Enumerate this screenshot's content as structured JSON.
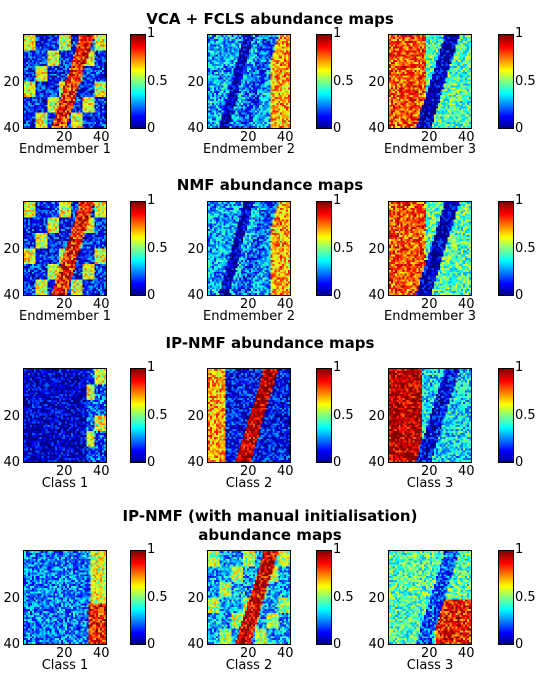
{
  "chart_data": {
    "type": "heatmap",
    "colormap": "jet",
    "color_range": [
      0,
      1
    ],
    "x_tick_labels": [
      "20",
      "40"
    ],
    "y_tick_labels": [
      "20",
      "40"
    ],
    "colorbar_tick_labels": [
      "0",
      "0.5",
      "1"
    ],
    "groups": [
      {
        "title": "VCA + FCLS abundance maps",
        "panels": [
          {
            "label": "Endmember 1"
          },
          {
            "label": "Endmember 2"
          },
          {
            "label": "Endmember 3"
          }
        ]
      },
      {
        "title": "NMF abundance maps",
        "panels": [
          {
            "label": "Endmember 1"
          },
          {
            "label": "Endmember 2"
          },
          {
            "label": "Endmember 3"
          }
        ]
      },
      {
        "title": "IP-NMF abundance maps",
        "panels": [
          {
            "label": "Class 1"
          },
          {
            "label": "Class 2"
          },
          {
            "label": "Class 3"
          }
        ]
      },
      {
        "title": "IP-NMF (with manual initialisation)\nabundance maps",
        "panels": [
          {
            "label": "Class 1"
          },
          {
            "label": "Class 2"
          },
          {
            "label": "Class 3"
          }
        ]
      }
    ]
  }
}
